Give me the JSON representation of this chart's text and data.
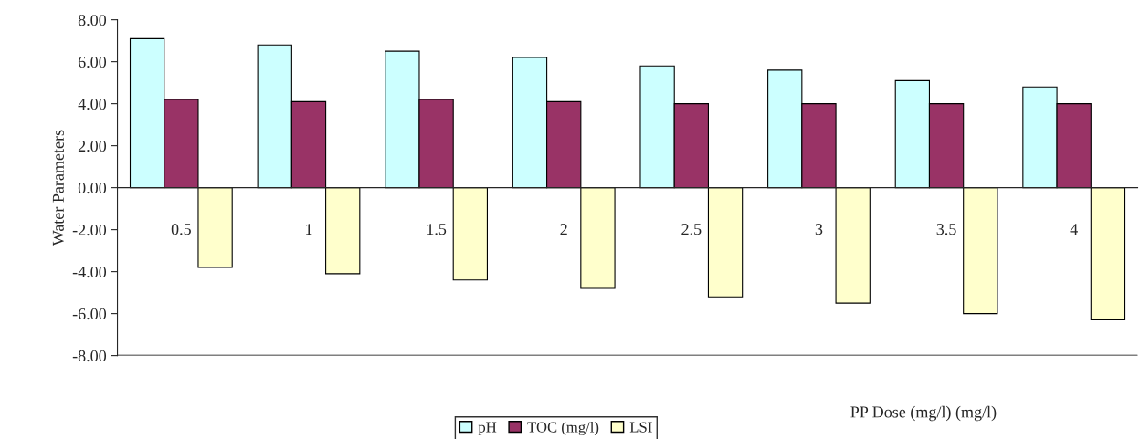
{
  "chart_data": {
    "type": "bar",
    "xlabel": "PP Dose (mg/l) (mg/l)",
    "ylabel": "Water Parameters",
    "categories": [
      "0.5",
      "1",
      "1.5",
      "2",
      "2.5",
      "3",
      "3.5",
      "4"
    ],
    "series": [
      {
        "name": "pH",
        "color": "#ccffff",
        "values": [
          7.1,
          6.8,
          6.5,
          6.2,
          5.8,
          5.6,
          5.1,
          4.8
        ]
      },
      {
        "name": "TOC (mg/l)",
        "color": "#993366",
        "values": [
          4.2,
          4.1,
          4.2,
          4.1,
          4.0,
          4.0,
          4.0,
          4.0
        ]
      },
      {
        "name": "LSI",
        "color": "#ffffcc",
        "values": [
          -3.8,
          -4.1,
          -4.4,
          -4.8,
          -5.2,
          -5.5,
          -6.0,
          -6.3
        ]
      }
    ],
    "ylim": [
      -8,
      8
    ],
    "yticks": [
      {
        "value": -8,
        "label": "-8.00"
      },
      {
        "value": -6,
        "label": "-6.00"
      },
      {
        "value": -4,
        "label": "-4.00"
      },
      {
        "value": -2,
        "label": "-2.00"
      },
      {
        "value": 0,
        "label": "0.00"
      },
      {
        "value": 2,
        "label": "2.00"
      },
      {
        "value": 4,
        "label": "4.00"
      },
      {
        "value": 6,
        "label": "6.00"
      },
      {
        "value": 8,
        "label": "8.00"
      }
    ],
    "grid": false,
    "legend": "bottom"
  }
}
